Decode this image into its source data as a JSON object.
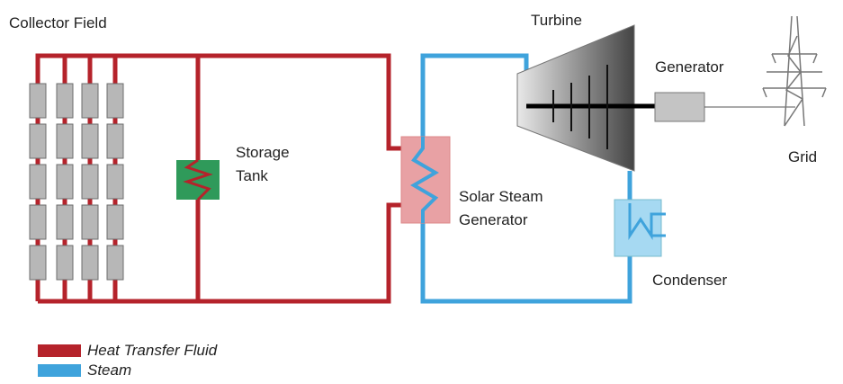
{
  "labels": {
    "collector_field": "Collector Field",
    "turbine": "Turbine",
    "generator": "Generator",
    "grid": "Grid",
    "storage_tank": [
      "Storage",
      "Tank"
    ],
    "steam_generator": [
      "Solar Steam",
      "Generator"
    ],
    "condenser": "Condenser"
  },
  "legend": [
    {
      "label": "Heat Transfer Fluid",
      "color": "#b5232b"
    },
    {
      "label": "Steam",
      "color": "#3fa3dc"
    }
  ]
}
